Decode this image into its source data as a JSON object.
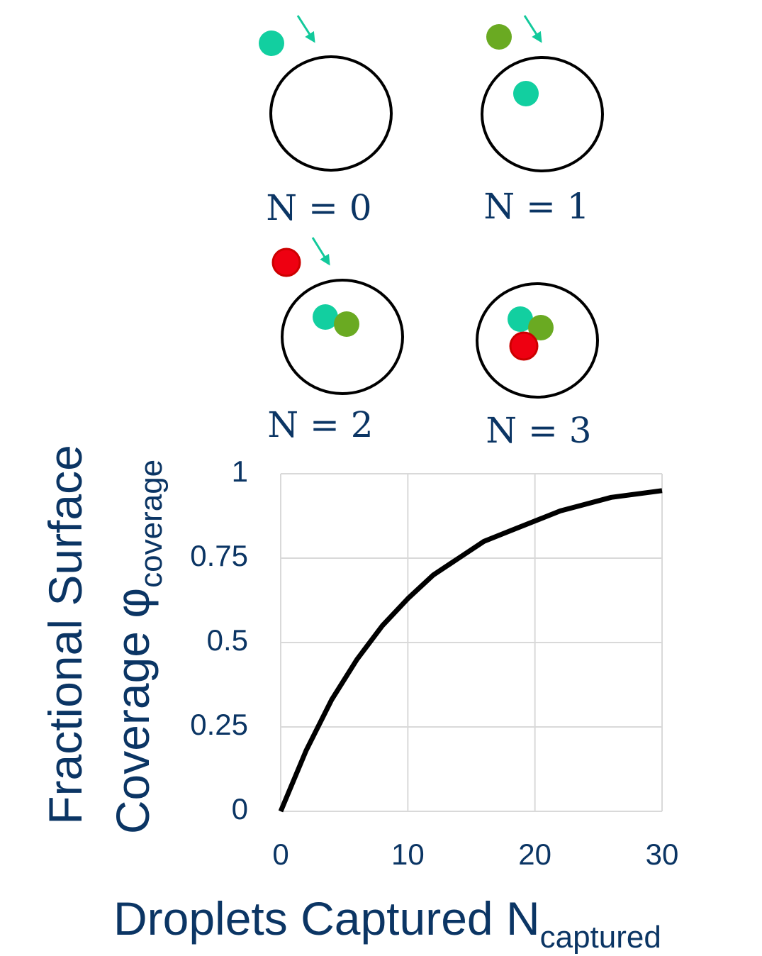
{
  "diagram": {
    "panels": [
      {
        "label": "N = 0"
      },
      {
        "label": "N = 1"
      },
      {
        "label": "N = 2"
      },
      {
        "label": "N = 3"
      }
    ]
  },
  "chart_data": {
    "type": "line",
    "x": [
      0,
      2,
      4,
      6,
      8,
      10,
      12,
      14,
      16,
      18,
      20,
      22,
      24,
      26,
      28,
      30
    ],
    "series": [
      {
        "color": "#000000",
        "values": [
          0,
          0.18,
          0.33,
          0.45,
          0.55,
          0.63,
          0.7,
          0.75,
          0.8,
          0.83,
          0.86,
          0.89,
          0.91,
          0.93,
          0.94,
          0.95
        ]
      }
    ],
    "xlim": [
      0,
      30
    ],
    "xticks": [
      0,
      10,
      20,
      30
    ],
    "ylim": [
      0,
      1
    ],
    "yticks": [
      0,
      0.25,
      0.5,
      0.75,
      1
    ],
    "grid": true,
    "xlabel": "Droplets Captured N",
    "xlabel_subscript": "captured",
    "ylabel": [
      "Fractional Surface",
      "Coverage φ"
    ],
    "ylabel_subscript": "coverage"
  }
}
